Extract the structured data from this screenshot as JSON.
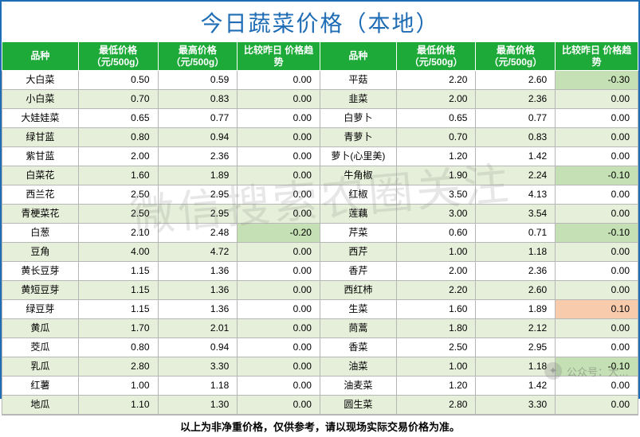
{
  "title": "今日蔬菜价格（本地）",
  "headers": {
    "variety": "品种",
    "low": "最低价格\n（元/500g）",
    "high": "最高价格\n（元/500g）",
    "trend": "比较昨日\n价格趋势"
  },
  "footer": "以上为非净重价格，仅供参考，请以现场实际交易价格为准。",
  "watermark": "微信搜索农圈关注",
  "wx_label": "公众号：大…",
  "colors": {
    "border": "#1f6db5",
    "title": "#1f6db5",
    "header_bg": "#1eaa39",
    "header_fg": "#ffffff",
    "row_odd": "#ffffff",
    "row_even": "#e6efda",
    "hl_green": "#c5e0b4",
    "hl_pink": "#f8cbad",
    "grid": "#b7b7b7"
  },
  "col_widths_pct": [
    12.0,
    12.5,
    12.5,
    13.0,
    12.0,
    12.5,
    12.5,
    13.0
  ],
  "left": [
    {
      "name": "大白菜",
      "low": "0.50",
      "high": "0.59",
      "trend": "0.00"
    },
    {
      "name": "小白菜",
      "low": "0.70",
      "high": "0.83",
      "trend": "0.00"
    },
    {
      "name": "大娃娃菜",
      "low": "0.65",
      "high": "0.77",
      "trend": "0.00"
    },
    {
      "name": "绿甘蓝",
      "low": "0.80",
      "high": "0.94",
      "trend": "0.00"
    },
    {
      "name": "紫甘蓝",
      "low": "2.00",
      "high": "2.36",
      "trend": "0.00"
    },
    {
      "name": "白菜花",
      "low": "1.60",
      "high": "1.89",
      "trend": "0.00"
    },
    {
      "name": "西兰花",
      "low": "2.50",
      "high": "2.95",
      "trend": "0.00"
    },
    {
      "name": "青梗菜花",
      "low": "2.50",
      "high": "2.95",
      "trend": "0.00"
    },
    {
      "name": "白葱",
      "low": "2.10",
      "high": "2.48",
      "trend": "-0.20",
      "hl": "green"
    },
    {
      "name": "豆角",
      "low": "4.00",
      "high": "4.72",
      "trend": "0.00"
    },
    {
      "name": "黄长豆芽",
      "low": "1.15",
      "high": "1.36",
      "trend": "0.00"
    },
    {
      "name": "黄短豆芽",
      "low": "1.15",
      "high": "1.36",
      "trend": "0.00"
    },
    {
      "name": "绿豆芽",
      "low": "1.15",
      "high": "1.36",
      "trend": "0.00"
    },
    {
      "name": "黄瓜",
      "low": "1.70",
      "high": "2.01",
      "trend": "0.00"
    },
    {
      "name": "茭瓜",
      "low": "0.80",
      "high": "0.94",
      "trend": "0.00"
    },
    {
      "name": "乳瓜",
      "low": "2.80",
      "high": "3.30",
      "trend": "0.00"
    },
    {
      "name": "红薯",
      "low": "1.00",
      "high": "1.18",
      "trend": "0.00"
    },
    {
      "name": "地瓜",
      "low": "1.10",
      "high": "1.30",
      "trend": "0.00"
    }
  ],
  "right": [
    {
      "name": "平菇",
      "low": "2.20",
      "high": "2.60",
      "trend": "-0.30",
      "hl": "green"
    },
    {
      "name": "韭菜",
      "low": "2.00",
      "high": "2.36",
      "trend": "0.00"
    },
    {
      "name": "白萝卜",
      "low": "0.65",
      "high": "0.77",
      "trend": "0.00"
    },
    {
      "name": "青萝卜",
      "low": "0.70",
      "high": "0.83",
      "trend": "0.00"
    },
    {
      "name": "萝卜(心里美)",
      "low": "1.20",
      "high": "1.42",
      "trend": "0.00"
    },
    {
      "name": "牛角椒",
      "low": "1.90",
      "high": "2.24",
      "trend": "-0.10",
      "hl": "green"
    },
    {
      "name": "红椒",
      "low": "3.50",
      "high": "4.13",
      "trend": "0.00"
    },
    {
      "name": "莲藕",
      "low": "3.00",
      "high": "3.54",
      "trend": "0.00"
    },
    {
      "name": "芹菜",
      "low": "0.60",
      "high": "0.71",
      "trend": "-0.10",
      "hl": "green"
    },
    {
      "name": "西芹",
      "low": "1.00",
      "high": "1.18",
      "trend": "0.00"
    },
    {
      "name": "香芹",
      "low": "2.00",
      "high": "2.36",
      "trend": "0.00"
    },
    {
      "name": "西红柿",
      "low": "2.20",
      "high": "2.60",
      "trend": "0.00"
    },
    {
      "name": "生菜",
      "low": "1.60",
      "high": "1.89",
      "trend": "0.10",
      "hl": "pink"
    },
    {
      "name": "茼蒿",
      "low": "1.80",
      "high": "2.12",
      "trend": "0.00"
    },
    {
      "name": "香菜",
      "low": "2.50",
      "high": "2.95",
      "trend": "0.00"
    },
    {
      "name": "油菜",
      "low": "1.00",
      "high": "1.18",
      "trend": "-0.10",
      "hl": "green"
    },
    {
      "name": "油麦菜",
      "low": "1.20",
      "high": "1.42",
      "trend": "0.00"
    },
    {
      "name": "圆生菜",
      "low": "2.80",
      "high": "3.30",
      "trend": "0.00"
    }
  ]
}
